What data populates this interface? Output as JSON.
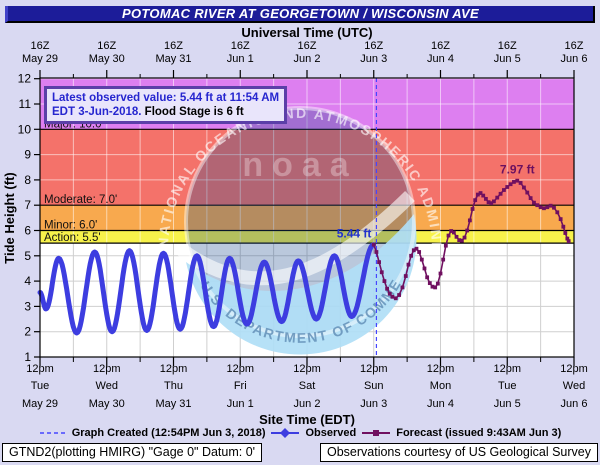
{
  "title": "POTOMAC RIVER AT GEORGETOWN / WISCONSIN AVE",
  "top_axis": {
    "label": "Universal Time (UTC)",
    "tick_label": "16Z",
    "dates": [
      "May 29",
      "May 30",
      "May 31",
      "Jun 1",
      "Jun 2",
      "Jun 3",
      "Jun 4",
      "Jun 5",
      "Jun 6"
    ]
  },
  "bottom_axis": {
    "label": "Site Time (EDT)",
    "tick_label": "12pm",
    "days": [
      "Tue",
      "Wed",
      "Thu",
      "Fri",
      "Sat",
      "Sun",
      "Mon",
      "Tue",
      "Wed"
    ],
    "dates": [
      "May 29",
      "May 30",
      "May 31",
      "Jun 1",
      "Jun 2",
      "Jun 3",
      "Jun 4",
      "Jun 5",
      "Jun 6"
    ]
  },
  "y_axis": {
    "label": "Tide Height (ft)",
    "ticks": [
      1,
      2,
      3,
      4,
      5,
      6,
      7,
      8,
      9,
      10,
      11,
      12
    ]
  },
  "info_box": {
    "line1": "Latest observed value: 5.44 ft at 11:54 AM",
    "line2_blue": "EDT 3-Jun-2018.",
    "line2_black": " Flood Stage is 6 ft"
  },
  "flood_categories": [
    {
      "name": "Action",
      "stage": 5.5,
      "label": "Action: 5.5'",
      "color": "#f7f24b"
    },
    {
      "name": "Minor",
      "stage": 6.0,
      "label": "Minor: 6.0'",
      "color": "#f8a94e"
    },
    {
      "name": "Moderate",
      "stage": 7.0,
      "label": "Moderate: 7.0'",
      "color": "#f4726a"
    },
    {
      "name": "Major",
      "stage": 10.0,
      "label": "Major: 10.0'",
      "color": "#dd7ff0"
    }
  ],
  "annotations": {
    "observed_label": "5.44 ft",
    "forecast_peak_label": "7.97 ft"
  },
  "legend": {
    "items": [
      {
        "label": "Graph Created (12:54PM Jun 3, 2018)"
      },
      {
        "label": "Observed"
      },
      {
        "label": "Forecast (issued 9:43AM Jun 3)"
      }
    ]
  },
  "footer": {
    "left": "GTND2(plotting HMIRG) \"Gage 0\" Datum: 0'",
    "right": "Observations courtesy of US Geological Survey"
  },
  "watermark": {
    "ring": "NATIONAL OCEANIC AND ATMOSPHERIC ADMINISTRATION",
    "center": "noaa",
    "bottom": "U.S. DEPARTMENT OF COMMERCE"
  },
  "colors": {
    "observed": "#3d3de0",
    "forecast": "#701060",
    "graph_created_line": "#4646ff",
    "grid_on_white": "#cfcfcf",
    "grid_on_bands": "rgba(255,255,255,0.55)",
    "titlebar_bg": "#1c1c99",
    "page_bg": "#d9d9f2"
  },
  "chart_data": {
    "type": "line",
    "title": "POTOMAC RIVER AT GEORGETOWN / WISCONSIN AVE",
    "x_unit": "days since 2018-05-29 12:00 EDT (ticks at 12pm EDT / 16Z daily)",
    "x_range": [
      0,
      8
    ],
    "ylabel": "Tide Height (ft)",
    "y_range": [
      1,
      12
    ],
    "flood_stage_ft": 6,
    "stages_ft": {
      "action": 5.5,
      "minor": 6.0,
      "moderate": 7.0,
      "major": 10.0
    },
    "latest_observed": {
      "value_ft": 5.44,
      "time": "11:54 AM EDT 3-Jun-2018"
    },
    "forecast_peak_ft": 7.97,
    "graph_created_x": 5.04,
    "series": [
      {
        "name": "Observed",
        "style": "thick-line",
        "interpolation": "tidal-cosine",
        "extrema": [
          [
            0.0,
            3.55
          ],
          [
            0.09,
            2.9
          ],
          [
            0.28,
            4.9
          ],
          [
            0.55,
            1.95
          ],
          [
            0.82,
            5.15
          ],
          [
            1.08,
            2.0
          ],
          [
            1.34,
            5.2
          ],
          [
            1.6,
            2.05
          ],
          [
            1.85,
            5.1
          ],
          [
            2.1,
            2.1
          ],
          [
            2.35,
            5.0
          ],
          [
            2.6,
            2.2
          ],
          [
            2.84,
            4.9
          ],
          [
            3.1,
            2.3
          ],
          [
            3.36,
            4.75
          ],
          [
            3.62,
            2.4
          ],
          [
            3.87,
            4.8
          ],
          [
            4.14,
            2.5
          ],
          [
            4.41,
            5.0
          ],
          [
            4.67,
            2.6
          ],
          [
            4.996,
            5.44
          ]
        ]
      },
      {
        "name": "Forecast (issued 9:43AM Jun 3)",
        "style": "line-squares",
        "points": [
          [
            5.0,
            5.44
          ],
          [
            5.04,
            5.15
          ],
          [
            5.08,
            4.75
          ],
          [
            5.12,
            4.35
          ],
          [
            5.16,
            4.0
          ],
          [
            5.2,
            3.7
          ],
          [
            5.24,
            3.5
          ],
          [
            5.28,
            3.38
          ],
          [
            5.33,
            3.32
          ],
          [
            5.38,
            3.45
          ],
          [
            5.43,
            3.75
          ],
          [
            5.48,
            4.2
          ],
          [
            5.52,
            4.65
          ],
          [
            5.56,
            5.0
          ],
          [
            5.6,
            5.22
          ],
          [
            5.64,
            5.28
          ],
          [
            5.68,
            5.15
          ],
          [
            5.72,
            4.85
          ],
          [
            5.76,
            4.5
          ],
          [
            5.8,
            4.15
          ],
          [
            5.84,
            3.92
          ],
          [
            5.88,
            3.78
          ],
          [
            5.92,
            3.75
          ],
          [
            5.96,
            3.9
          ],
          [
            6.0,
            4.3
          ],
          [
            6.04,
            4.85
          ],
          [
            6.08,
            5.4
          ],
          [
            6.12,
            5.8
          ],
          [
            6.16,
            5.98
          ],
          [
            6.2,
            5.92
          ],
          [
            6.24,
            5.75
          ],
          [
            6.28,
            5.62
          ],
          [
            6.32,
            5.6
          ],
          [
            6.36,
            5.72
          ],
          [
            6.4,
            6.0
          ],
          [
            6.44,
            6.4
          ],
          [
            6.48,
            6.85
          ],
          [
            6.52,
            7.2
          ],
          [
            6.56,
            7.42
          ],
          [
            6.6,
            7.48
          ],
          [
            6.64,
            7.38
          ],
          [
            6.68,
            7.25
          ],
          [
            6.72,
            7.12
          ],
          [
            6.76,
            7.08
          ],
          [
            6.8,
            7.15
          ],
          [
            6.85,
            7.3
          ],
          [
            6.9,
            7.45
          ],
          [
            6.95,
            7.6
          ],
          [
            7.0,
            7.72
          ],
          [
            7.05,
            7.83
          ],
          [
            7.1,
            7.92
          ],
          [
            7.15,
            7.97
          ],
          [
            7.2,
            7.88
          ],
          [
            7.25,
            7.7
          ],
          [
            7.3,
            7.5
          ],
          [
            7.35,
            7.28
          ],
          [
            7.4,
            7.1
          ],
          [
            7.45,
            7.0
          ],
          [
            7.5,
            6.92
          ],
          [
            7.55,
            6.88
          ],
          [
            7.6,
            6.92
          ],
          [
            7.65,
            6.98
          ],
          [
            7.7,
            6.9
          ],
          [
            7.75,
            6.72
          ],
          [
            7.8,
            6.45
          ],
          [
            7.84,
            6.15
          ],
          [
            7.87,
            5.9
          ],
          [
            7.9,
            5.68
          ],
          [
            7.92,
            5.58
          ]
        ]
      }
    ]
  }
}
